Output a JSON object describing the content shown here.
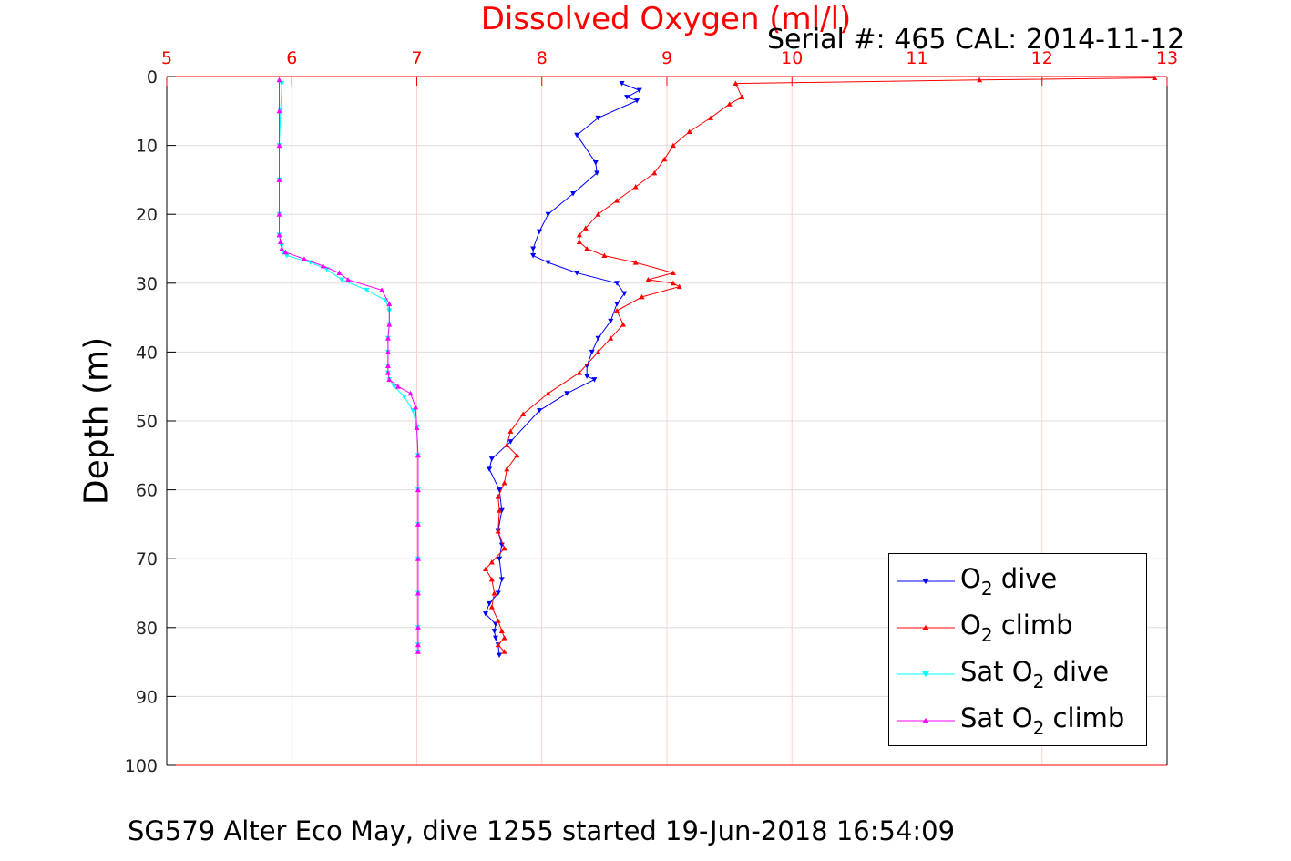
{
  "chart_data": {
    "type": "line",
    "title": "Dissolved Oxygen (ml/l)",
    "subtitle": "Serial #: 465  CAL: 2014-11-12",
    "xlabel": "Dissolved Oxygen (ml/l)",
    "ylabel": "Depth (m)",
    "caption": "SG579 Alter Eco May, dive 1255 started 19-Jun-2018 16:54:09",
    "xlim": [
      5,
      13
    ],
    "ylim": [
      0,
      100
    ],
    "y_reversed": true,
    "x_axis_position": "top",
    "x_ticks": [
      "5",
      "6",
      "7",
      "8",
      "9",
      "10",
      "11",
      "12",
      "13"
    ],
    "y_ticks": [
      "0",
      "10",
      "20",
      "30",
      "40",
      "50",
      "60",
      "70",
      "80",
      "90",
      "100"
    ],
    "grid": true,
    "legend_position": "bottom-right",
    "series": [
      {
        "name": "O2 dive",
        "color": "#0000ff",
        "marker": "triangle-down",
        "x": [
          8.64,
          8.78,
          8.68,
          8.76,
          8.45,
          8.28,
          8.43,
          8.44,
          8.25,
          8.05,
          7.98,
          7.93,
          7.93,
          8.05,
          8.28,
          8.6,
          8.66,
          8.6,
          8.55,
          8.45,
          8.4,
          8.36,
          8.36,
          8.42,
          8.2,
          7.98,
          7.75,
          7.6,
          7.58,
          7.66,
          7.68,
          7.65,
          7.68,
          7.66,
          7.68,
          7.65,
          7.58,
          7.55,
          7.63,
          7.62,
          7.63,
          7.65,
          7.66
        ],
        "y": [
          1,
          2,
          3,
          3.5,
          6,
          8.5,
          12.5,
          14,
          17,
          20,
          22.5,
          25,
          26,
          27,
          28.5,
          30,
          31.5,
          33,
          35.5,
          38,
          40,
          42,
          43.5,
          44,
          46,
          48.5,
          53,
          55.5,
          57,
          60,
          63,
          66,
          68,
          70,
          73,
          75,
          76.5,
          78,
          79.5,
          80.5,
          81.5,
          82.5,
          84
        ]
      },
      {
        "name": "O2 climb",
        "color": "#ff0000",
        "marker": "triangle-up",
        "x": [
          12.9,
          11.5,
          9.55,
          9.6,
          9.5,
          9.35,
          9.18,
          9.05,
          8.98,
          8.9,
          8.75,
          8.6,
          8.45,
          8.35,
          8.3,
          8.3,
          8.36,
          8.5,
          8.75,
          9.05,
          8.85,
          9.05,
          9.1,
          8.8,
          8.6,
          8.65,
          8.55,
          8.45,
          8.3,
          8.05,
          7.85,
          7.75,
          7.72,
          7.8,
          7.72,
          7.7,
          7.65,
          7.66,
          7.65,
          7.7,
          7.6,
          7.55,
          7.6,
          7.62,
          7.6,
          7.65,
          7.68,
          7.7,
          7.65,
          7.7
        ],
        "y": [
          0.2,
          0.5,
          1,
          3,
          4,
          6,
          8,
          10,
          12,
          14,
          16,
          18,
          20,
          22,
          23,
          24,
          25,
          26,
          27,
          28.5,
          29.5,
          30,
          30.5,
          32,
          34,
          36,
          38,
          40,
          43,
          46,
          49,
          51.5,
          53.5,
          55,
          57,
          59,
          61,
          63,
          66,
          68.5,
          70.5,
          71.5,
          73,
          75,
          77,
          79,
          80.5,
          81.5,
          82.5,
          83.5
        ]
      },
      {
        "name": "Sat O2 dive",
        "color": "#00ffff",
        "marker": "triangle-down",
        "x": [
          5.92,
          5.91,
          5.9,
          5.9,
          5.9,
          5.9,
          5.92,
          5.93,
          5.96,
          6.15,
          6.28,
          6.4,
          6.6,
          6.75,
          6.78,
          6.78,
          6.77,
          6.77,
          6.77,
          6.77,
          6.78,
          6.82,
          6.9,
          6.97,
          7.0,
          7.01,
          7.01,
          7.01,
          7.01,
          7.01,
          7.01,
          7.01,
          7.01
        ],
        "y": [
          1,
          5,
          10,
          15,
          20,
          23,
          24.5,
          25.5,
          26,
          27,
          28,
          29.5,
          31,
          32.5,
          34,
          36,
          38,
          40,
          42,
          43,
          44,
          45,
          46.5,
          48.5,
          51,
          55,
          60,
          65,
          70,
          75,
          80,
          82.5,
          83.5
        ]
      },
      {
        "name": "Sat O2 climb",
        "color": "#ff00ff",
        "marker": "triangle-up",
        "x": [
          5.9,
          5.9,
          5.9,
          5.9,
          5.9,
          5.9,
          5.91,
          5.92,
          5.95,
          6.1,
          6.25,
          6.38,
          6.45,
          6.72,
          6.78,
          6.78,
          6.77,
          6.77,
          6.77,
          6.77,
          6.78,
          6.85,
          6.95,
          6.99,
          7.0,
          7.01,
          7.01,
          7.01,
          7.01,
          7.01,
          7.01,
          7.01,
          7.01
        ],
        "y": [
          0.5,
          5,
          10,
          15,
          20,
          23,
          24,
          25,
          25.5,
          26.5,
          27.5,
          28.5,
          29.5,
          31,
          33,
          36,
          38,
          40,
          42,
          43,
          44,
          45,
          46,
          48,
          51,
          55,
          60,
          65,
          70,
          75,
          80,
          82.5,
          83.5
        ]
      }
    ]
  },
  "legend": {
    "items": [
      {
        "prefix": "O",
        "sub": "2",
        "suffix": " dive",
        "color": "#0000ff",
        "marker": "triangle-down"
      },
      {
        "prefix": "O",
        "sub": "2",
        "suffix": " climb",
        "color": "#ff0000",
        "marker": "triangle-up"
      },
      {
        "prefix": "Sat O",
        "sub": "2",
        "suffix": " dive",
        "color": "#00ffff",
        "marker": "triangle-down"
      },
      {
        "prefix": "Sat O",
        "sub": "2",
        "suffix": " climb",
        "color": "#ff00ff",
        "marker": "triangle-up"
      }
    ]
  }
}
